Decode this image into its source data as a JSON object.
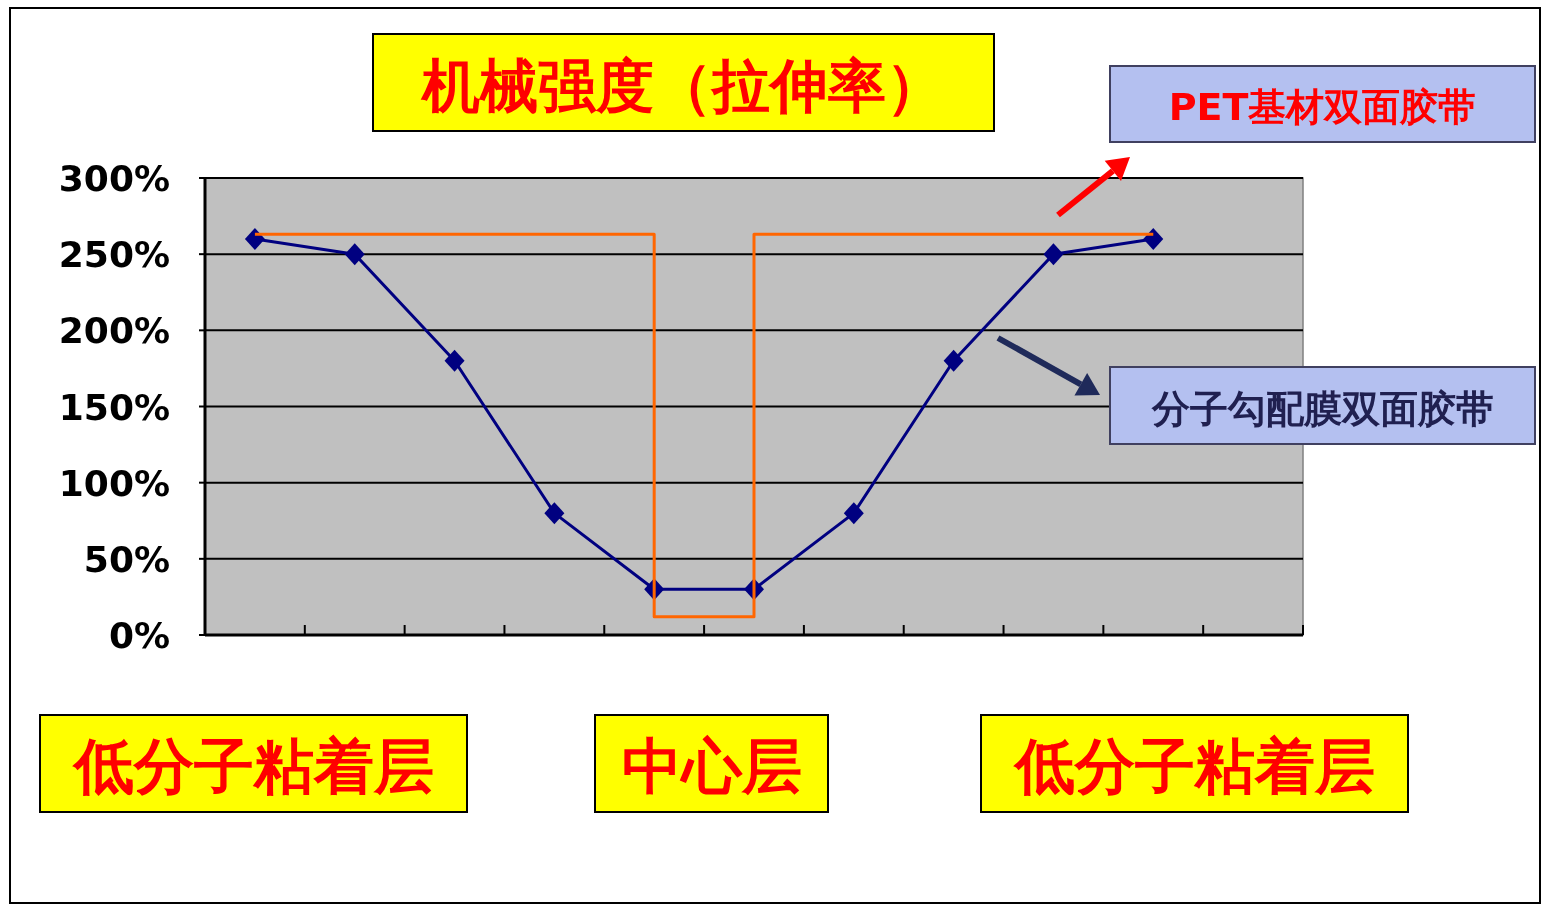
{
  "chart_data": {
    "type": "line",
    "title": "机械强度（拉伸率）",
    "categories": [
      null,
      null,
      null,
      null,
      null,
      null,
      null,
      null,
      null,
      null,
      null
    ],
    "ylim": [
      0,
      300
    ],
    "yticks": [
      {
        "value": 0,
        "label": "0%"
      },
      {
        "value": 50,
        "label": "50%"
      },
      {
        "value": 100,
        "label": "100%"
      },
      {
        "value": 150,
        "label": "150%"
      },
      {
        "value": 200,
        "label": "200%"
      },
      {
        "value": 250,
        "label": "250%"
      },
      {
        "value": 300,
        "label": "300%"
      }
    ],
    "grid": "y",
    "series": [
      {
        "name": "分子勾配膜双面胶带",
        "color": "#000080",
        "marker": "diamond",
        "values": [
          260,
          250,
          180,
          80,
          30,
          30,
          80,
          180,
          250,
          260,
          null
        ]
      },
      {
        "name": "PET基材双面胶带",
        "type": "step",
        "color": "#ff6600",
        "marker": "none",
        "values": [
          263,
          263,
          263,
          263,
          12,
          263,
          263,
          263,
          263,
          263,
          null
        ]
      }
    ],
    "annotations": [
      "低分子粘着层",
      "中心层",
      "低分子粘着层"
    ]
  }
}
